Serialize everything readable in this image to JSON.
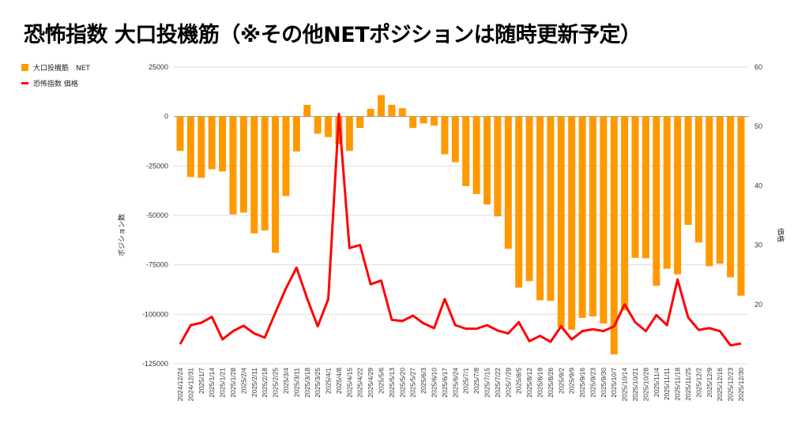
{
  "chart_data": {
    "type": "bar+line",
    "title": "恐怖指数 大口投機筋（※その他NETポジションは随時更新予定）",
    "ylabel_left": "ポジション数",
    "ylabel_right": "価格",
    "ylim_left": [
      -125000,
      25000
    ],
    "yticks_left": [
      "25000",
      "0",
      "-25000",
      "-50000",
      "-75000",
      "-100000",
      "-125000"
    ],
    "ylim_right": [
      10,
      60
    ],
    "yticks_right": [
      "60",
      "50",
      "40",
      "30",
      "20"
    ],
    "grid": true,
    "legend_position": "top-left",
    "colors": {
      "bar": "#ff9900",
      "line": "#ff0000"
    },
    "categories": [
      "2024/12/24",
      "2024/12/31",
      "2025/1/7",
      "2025/1/14",
      "2025/1/21",
      "2025/1/28",
      "2025/2/4",
      "2025/2/11",
      "2025/2/18",
      "2025/2/25",
      "2025/3/4",
      "2025/3/11",
      "2025/3/18",
      "2025/3/25",
      "2025/4/1",
      "2025/4/8",
      "2025/4/15",
      "2025/4/22",
      "2025/4/29",
      "2025/5/6",
      "2025/5/13",
      "2025/5/20",
      "2025/5/27",
      "2025/6/3",
      "2025/6/10",
      "2025/6/17",
      "2025/6/24",
      "2025/7/1",
      "2025/7/8",
      "2025/7/15",
      "2025/7/22",
      "2025/7/29",
      "2025/8/5",
      "2025/8/12",
      "2025/8/19",
      "2025/8/26",
      "2025/9/2",
      "2025/9/9",
      "2025/9/16",
      "2025/9/23",
      "2025/9/30",
      "2025/10/7",
      "2025/10/14",
      "2025/10/21",
      "2025/10/28",
      "2025/11/4",
      "2025/11/11",
      "2025/11/18",
      "2025/11/25",
      "2025/12/2",
      "2025/12/9",
      "2025/12/16",
      "2025/12/23",
      "2025/12/30"
    ],
    "series": [
      {
        "name": "大口投機筋　NET",
        "type": "bar",
        "axis": "left",
        "values": [
          -17400,
          -30600,
          -31000,
          -26700,
          -27800,
          -49500,
          -48600,
          -59100,
          -57600,
          -68900,
          -40200,
          -17700,
          5900,
          -8700,
          -10400,
          -14000,
          -17400,
          -5800,
          3900,
          10800,
          5900,
          4200,
          -5800,
          -3500,
          -4600,
          -19100,
          -23100,
          -35200,
          -39200,
          -44500,
          -50500,
          -66900,
          -86500,
          -83200,
          -92900,
          -93200,
          -106500,
          -107800,
          -101800,
          -101100,
          -104700,
          -120300,
          -98000,
          -71500,
          -71700,
          -85600,
          -77000,
          -79800,
          -54800,
          -63700,
          -75700,
          -74400,
          -81300,
          -90600
        ]
      },
      {
        "name": "恐怖指数 価格",
        "type": "line",
        "axis": "right",
        "values": [
          13.3,
          16.5,
          16.9,
          17.9,
          14.1,
          15.5,
          16.4,
          15.1,
          14.4,
          18.6,
          22.7,
          26.2,
          21.0,
          16.3,
          20.9,
          52.1,
          29.5,
          30.0,
          23.4,
          24.0,
          17.4,
          17.2,
          18.1,
          16.8,
          16.0,
          20.9,
          16.5,
          15.9,
          15.9,
          16.5,
          15.6,
          15.1,
          17.0,
          13.8,
          14.7,
          13.7,
          16.3,
          14.1,
          15.5,
          15.8,
          15.5,
          16.3,
          20.0,
          17.0,
          15.5,
          18.2,
          16.5,
          24.2,
          17.8,
          15.7,
          16.0,
          15.5,
          13.1,
          13.4
        ]
      }
    ]
  }
}
